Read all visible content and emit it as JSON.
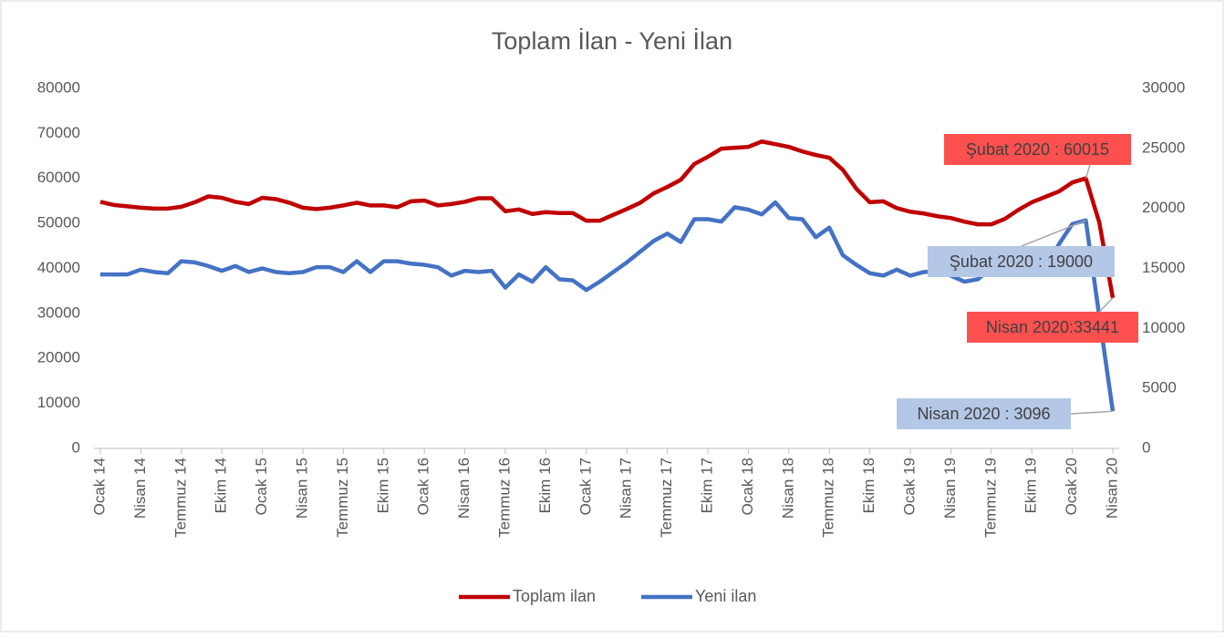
{
  "chart_data": {
    "type": "line",
    "title": "Toplam İlan - Yeni İlan",
    "categories": [
      "Ocak 14",
      null,
      null,
      "Nisan 14",
      null,
      null,
      "Temmuz 14",
      null,
      null,
      "Ekim 14",
      null,
      null,
      "Ocak 15",
      null,
      null,
      "Nisan 15",
      null,
      null,
      "Temmuz 15",
      null,
      null,
      "Ekim 15",
      null,
      null,
      "Ocak 16",
      null,
      null,
      "Nisan 16",
      null,
      null,
      "Temmuz 16",
      null,
      null,
      "Ekim 16",
      null,
      null,
      "Ocak 17",
      null,
      null,
      "Nisan 17",
      null,
      null,
      "Temmuz 17",
      null,
      null,
      "Ekim 17",
      null,
      null,
      "Ocak 18",
      null,
      null,
      "Nisan 18",
      null,
      null,
      "Temmuz 18",
      null,
      null,
      "Ekim 18",
      null,
      null,
      "Ocak 19",
      null,
      null,
      "Nisan 19",
      null,
      null,
      "Temmuz 19",
      null,
      null,
      "Ekim 19",
      null,
      null,
      "Ocak 20",
      null,
      null,
      "Nisan 20"
    ],
    "series": [
      {
        "name": "Toplam ilan",
        "color": "#c00000",
        "values": [
          54800,
          54100,
          53800,
          53500,
          53300,
          53300,
          53700,
          54700,
          56000,
          55700,
          54800,
          54300,
          55700,
          55400,
          54600,
          53500,
          53200,
          53500,
          54000,
          54600,
          54000,
          54000,
          53600,
          54900,
          55100,
          54000,
          54300,
          54800,
          55600,
          55600,
          52700,
          53100,
          52100,
          52500,
          52300,
          52300,
          50600,
          50600,
          51900,
          53200,
          54600,
          56700,
          58100,
          59700,
          63200,
          64800,
          66600,
          66800,
          67000,
          68200,
          67600,
          67000,
          66000,
          65200,
          64600,
          61900,
          57700,
          54700,
          54900,
          53400,
          52600,
          52200,
          51600,
          51200,
          50400,
          49800,
          49800,
          51000,
          53000,
          54700,
          55900,
          57100,
          59100,
          60015,
          50200,
          33441
        ]
      },
      {
        "name": "Yeni ilan",
        "color": "#4472c4",
        "axis": "y2",
        "values": [
          14500,
          14500,
          14500,
          14900,
          14700,
          14600,
          15600,
          15500,
          15200,
          14800,
          15200,
          14700,
          15000,
          14700,
          14600,
          14700,
          15100,
          15100,
          14700,
          15600,
          14700,
          15600,
          15600,
          15400,
          15300,
          15100,
          14400,
          14800,
          14700,
          14800,
          13400,
          14500,
          13900,
          15100,
          14100,
          14000,
          13200,
          13900,
          14700,
          15500,
          16400,
          17300,
          17900,
          17200,
          19100,
          19100,
          18900,
          20100,
          19900,
          19500,
          20500,
          19200,
          19100,
          17600,
          18400,
          16100,
          15300,
          14600,
          14400,
          14900,
          14400,
          14700,
          14800,
          14400,
          13900,
          14100,
          15000,
          14900,
          14900,
          14900,
          15000,
          17000,
          18700,
          19000,
          11000,
          3096
        ]
      }
    ],
    "ylim": [
      0,
      80000
    ],
    "yticks": [
      0,
      10000,
      20000,
      30000,
      40000,
      50000,
      60000,
      70000,
      80000
    ],
    "y2lim": [
      0,
      30000
    ],
    "y2ticks": [
      0,
      5000,
      10000,
      15000,
      20000,
      25000,
      30000
    ],
    "grid": false,
    "legend": "bottom",
    "annotations": [
      {
        "text": "Şubat 2020 : 60015",
        "series": 0,
        "index": 73,
        "color": "#ff5050"
      },
      {
        "text": "Şubat 2020 : 19000",
        "series": 1,
        "index": 73,
        "color": "#b4c7e7"
      },
      {
        "text": "Nisan 2020:33441",
        "series": 0,
        "index": 75,
        "color": "#ff5050"
      },
      {
        "text": "Nisan 2020 : 3096",
        "series": 1,
        "index": 75,
        "color": "#b4c7e7"
      }
    ]
  }
}
